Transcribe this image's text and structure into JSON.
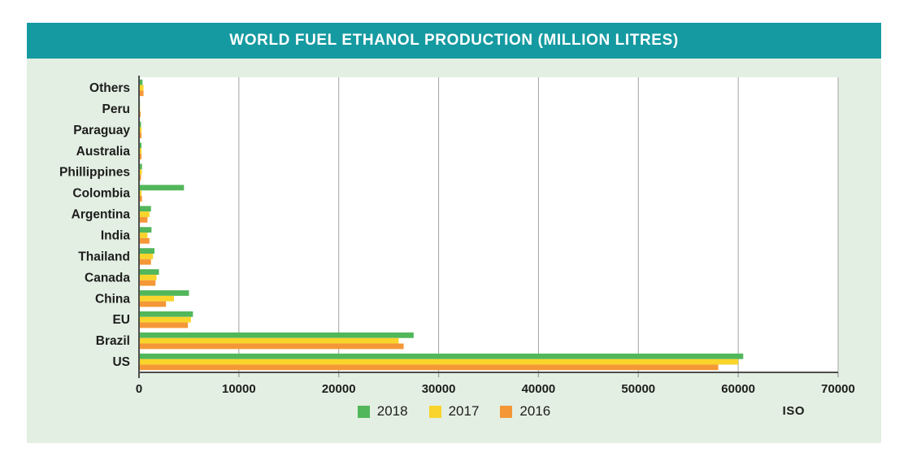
{
  "title": "WORLD FUEL ETHANOL PRODUCTION (MILLION LITRES)",
  "source_label": "ISO",
  "colors": {
    "header_bg": "#159aa1",
    "panel_bg": "#e3efe2",
    "plot_bg": "#ffffff",
    "gridline": "#a3a3a3",
    "axis": "#4d4d4d",
    "text": "#1d1d1d",
    "title_text": "#ffffff"
  },
  "chart_data": {
    "type": "bar",
    "orientation": "horizontal",
    "title": "WORLD FUEL ETHANOL PRODUCTION (MILLION LITRES)",
    "unit": "million litres",
    "categories_top_to_bottom": [
      "Others",
      "Peru",
      "Paraguay",
      "Australia",
      "Phillippines",
      "Colombia",
      "Argentina",
      "India",
      "Thailand",
      "Canada",
      "China",
      "EU",
      "Brazil",
      "US"
    ],
    "series": [
      {
        "name": "2018",
        "color": "#52b75a",
        "values": [
          350,
          90,
          200,
          250,
          300,
          4500,
          1200,
          1250,
          1550,
          2000,
          5000,
          5400,
          27500,
          60500
        ]
      },
      {
        "name": "2017",
        "color": "#f9d42b",
        "values": [
          450,
          110,
          250,
          250,
          280,
          250,
          1050,
          850,
          1400,
          1750,
          3500,
          5200,
          26000,
          60000
        ]
      },
      {
        "name": "2016",
        "color": "#f49737",
        "values": [
          450,
          160,
          250,
          250,
          200,
          300,
          850,
          1050,
          1200,
          1650,
          2700,
          4900,
          26500,
          58000
        ]
      }
    ],
    "x_axis": {
      "min": 0,
      "max": 70000,
      "tick_step": 10000,
      "tick_labels": [
        "0",
        "10000",
        "20000",
        "30000",
        "40000",
        "50000",
        "60000",
        "70000"
      ]
    },
    "legend": [
      {
        "label": "2018",
        "color": "#52b75a"
      },
      {
        "label": "2017",
        "color": "#f9d42b"
      },
      {
        "label": "2016",
        "color": "#f49737"
      }
    ],
    "grid": true,
    "legend_position": "bottom-center"
  }
}
